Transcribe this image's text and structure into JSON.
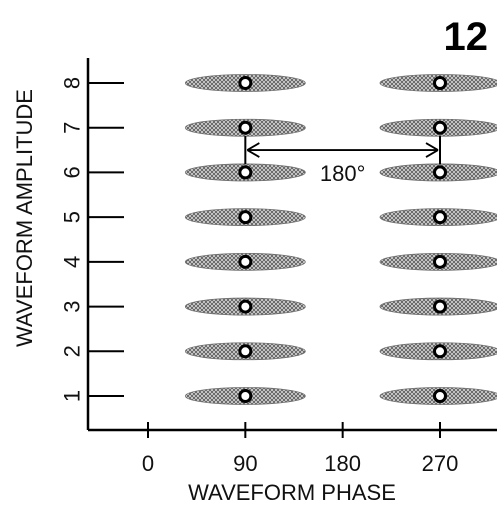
{
  "figure_number": "12",
  "x_axis": {
    "title": "WAVEFORM PHASE",
    "ticks": [
      {
        "value": 0,
        "label": "0"
      },
      {
        "value": 90,
        "label": "90"
      },
      {
        "value": 180,
        "label": "180"
      },
      {
        "value": 270,
        "label": "270"
      }
    ]
  },
  "y_axis": {
    "title": "WAVEFORM AMPLITUDE",
    "ticks": [
      {
        "value": 1,
        "label": "1"
      },
      {
        "value": 2,
        "label": "2"
      },
      {
        "value": 3,
        "label": "3"
      },
      {
        "value": 4,
        "label": "4"
      },
      {
        "value": 5,
        "label": "5"
      },
      {
        "value": 6,
        "label": "6"
      },
      {
        "value": 7,
        "label": "7"
      },
      {
        "value": 8,
        "label": "8"
      }
    ]
  },
  "points": {
    "phases": [
      90,
      270
    ],
    "amplitudes": [
      1,
      2,
      3,
      4,
      5,
      6,
      7,
      8
    ]
  },
  "annotation": {
    "label": "180°",
    "from_phase": 90,
    "to_phase": 270,
    "amplitude": 6.5
  },
  "colors": {
    "axis": "#000000",
    "ellipse_fill": "#9a9a9a",
    "marker_fill": "#ffffff"
  }
}
